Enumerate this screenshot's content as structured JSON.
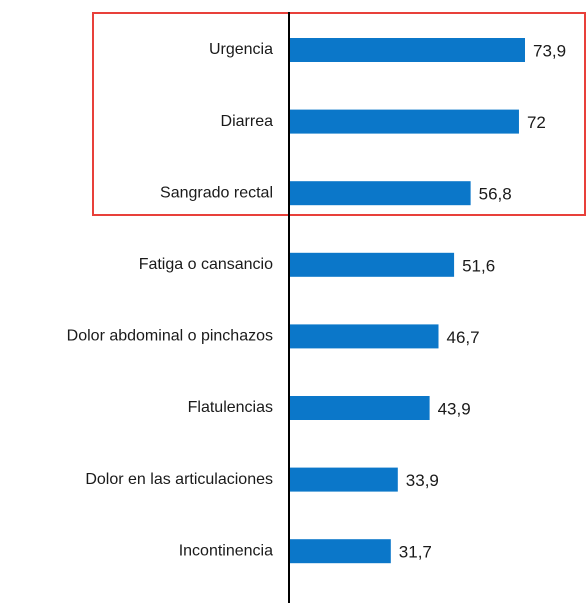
{
  "chart_data": {
    "type": "bar",
    "orientation": "horizontal",
    "categories": [
      "Urgencia",
      "Diarrea",
      "Sangrado rectal",
      "Fatiga o cansancio",
      "Dolor abdominal o pinchazos",
      "Flatulencias",
      "Dolor en las articulaciones",
      "Incontinencia"
    ],
    "values": [
      73.9,
      72,
      56.8,
      51.6,
      46.7,
      43.9,
      33.9,
      31.7
    ],
    "value_labels": [
      "73,9",
      "72",
      "56,8",
      "51,6",
      "46,7",
      "43,9",
      "33,9",
      "31,7"
    ],
    "color": "#0b77c9"
  }
}
